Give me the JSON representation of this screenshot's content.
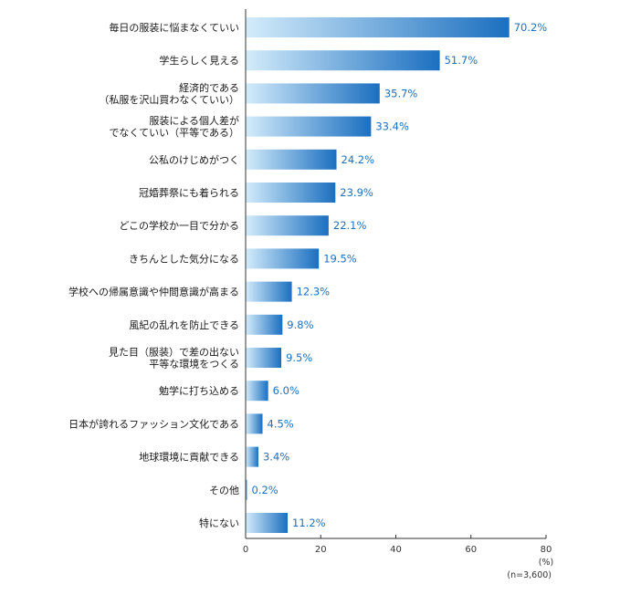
{
  "chart_data": {
    "type": "bar",
    "orientation": "horizontal",
    "categories": [
      [
        "毎日の服装に悩まなくていい"
      ],
      [
        "学生らしく見える"
      ],
      [
        "経済的である",
        "（私服を沢山買わなくていい）"
      ],
      [
        "服装による個人差が",
        "でなくていい（平等である）"
      ],
      [
        "公私のけじめがつく"
      ],
      [
        "冠婚葬祭にも着られる"
      ],
      [
        "どこの学校か一目で分かる"
      ],
      [
        "きちんとした気分になる"
      ],
      [
        "学校への帰属意識や仲間意識が高まる"
      ],
      [
        "風紀の乱れを防止できる"
      ],
      [
        "見た目（服装）で差の出ない",
        "平等な環境をつくる"
      ],
      [
        "勉学に打ち込める"
      ],
      [
        "日本が誇れるファッション文化である"
      ],
      [
        "地球環境に貢献できる"
      ],
      [
        "その他"
      ],
      [
        "特にない"
      ]
    ],
    "values": [
      70.2,
      51.7,
      35.7,
      33.4,
      24.2,
      23.9,
      22.1,
      19.5,
      12.3,
      9.8,
      9.5,
      6.0,
      4.5,
      3.4,
      0.2,
      11.2
    ],
    "value_labels": [
      "70.2%",
      "51.7%",
      "35.7%",
      "33.4%",
      "24.2%",
      "23.9%",
      "22.1%",
      "19.5%",
      "12.3%",
      "9.8%",
      "9.5%",
      "6.0%",
      "4.5%",
      "3.4%",
      "0.2%",
      "11.2%"
    ],
    "xlim": [
      0,
      80
    ],
    "xticks": [
      0,
      20,
      40,
      60,
      80
    ],
    "unit_label": "(%)",
    "sample_label": "(n=3,600)",
    "grid": false,
    "colors": {
      "bar_start": "#d3ecfb",
      "bar_end": "#1b6fc0",
      "value_text": "#1f6fbf",
      "axis": "#333333"
    }
  }
}
